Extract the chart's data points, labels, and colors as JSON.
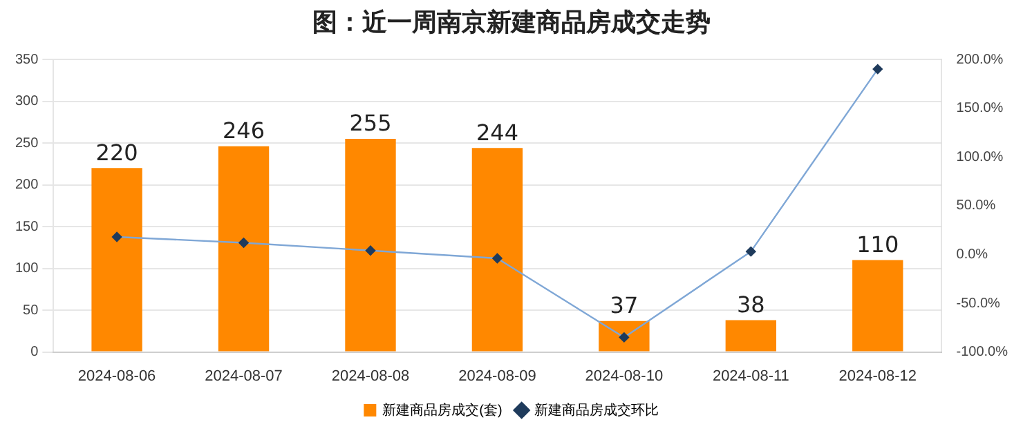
{
  "chart_data": {
    "type": "bar",
    "title": "图：近一周南京新建商品房成交走势",
    "categories": [
      "2024-08-06",
      "2024-08-07",
      "2024-08-08",
      "2024-08-09",
      "2024-08-10",
      "2024-08-11",
      "2024-08-12"
    ],
    "series": [
      {
        "name": "新建商品房成交(套)",
        "color": "#ff8800",
        "values": [
          220,
          246,
          255,
          244,
          37,
          38,
          110
        ],
        "data_labels": true
      },
      {
        "name": "新建商品房成交环比",
        "type": "line",
        "axis": "y2",
        "color": "#7fa7d6",
        "marker": "diamond",
        "values": [
          18,
          12,
          4,
          -4,
          -85,
          3,
          190
        ]
      }
    ],
    "ylim": [
      0,
      350
    ],
    "yticks": [
      0,
      50,
      100,
      150,
      200,
      250,
      300,
      350
    ],
    "y2lim": [
      -100,
      200
    ],
    "y2ticks": [
      {
        "value": -100,
        "label": "-100.0%"
      },
      {
        "value": -50,
        "label": "-50.0%"
      },
      {
        "value": 0,
        "label": "0.0%"
      },
      {
        "value": 50,
        "label": "50.0%"
      },
      {
        "value": 100,
        "label": "100.0%"
      },
      {
        "value": 150,
        "label": "150.0%"
      },
      {
        "value": 200,
        "label": "200.0%"
      }
    ],
    "grid": "y",
    "legend": "bottom"
  }
}
